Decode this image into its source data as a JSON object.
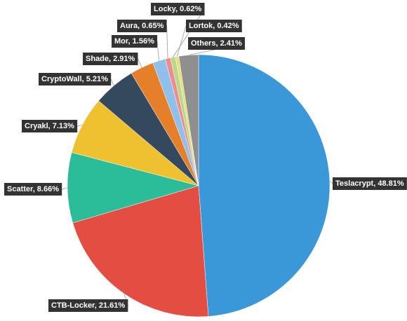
{
  "chart_data": {
    "type": "pie",
    "values": [
      48.81,
      21.61,
      8.66,
      7.13,
      5.21,
      2.91,
      1.56,
      0.65,
      0.62,
      0.42,
      2.41
    ],
    "value_labels": [
      "Teslacrypt, 48.81%",
      "CTB-Locker, 21.61%",
      "Scatter, 8.66%",
      "Cryakl, 7.13%",
      "CryptoWall, 5.21%",
      "Shade, 2.91%",
      "Mor, 1.56%",
      "Aura, 0.65%",
      "Locky, 0.62%",
      "Lortok, 0.42%",
      "Others, 2.41%"
    ],
    "colors": [
      "#3a97d8",
      "#e34d42",
      "#2bbd99",
      "#efc131",
      "#34495e",
      "#e67f2a",
      "#8fbfea",
      "#ee8d8d",
      "#b8d98c",
      "#e6df7c",
      "#8f8f8f"
    ]
  }
}
